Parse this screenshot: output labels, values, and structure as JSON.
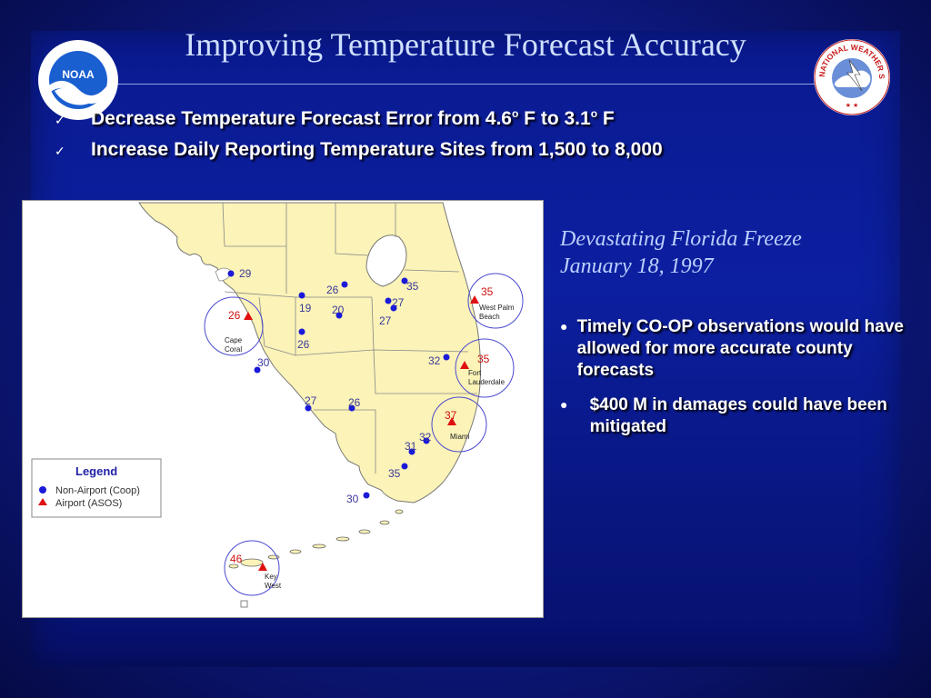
{
  "slide": {
    "title": "Improving Temperature Forecast Accuracy"
  },
  "top_bullets": [
    {
      "icon": "checkmark-icon",
      "text_a": "Decrease Temperature Forecast Error from 4.6",
      "sup_a": "o",
      "text_b": " F to 3.1",
      "sup_b": "o",
      "text_c": " F"
    },
    {
      "icon": "checkmark-icon",
      "text": "Increase Daily Reporting Temperature Sites from 1,500 to 8,000"
    }
  ],
  "side": {
    "title_line1": "Devastating Florida Freeze",
    "title_line2": "January 18, 1997",
    "bullets": [
      "Timely CO-OP observations would have allowed for more accurate county forecasts",
      "$400 M in damages could have been mitigated"
    ]
  },
  "logos": {
    "noaa_text": "NOAA",
    "nws_text": "NATIONAL WEATHER SERVICE"
  },
  "map": {
    "legend": {
      "title": "Legend",
      "coop_label": "Non-Airport (Coop)",
      "asos_label": "Airport (ASOS)"
    },
    "colors": {
      "land": "#fbf3b7",
      "water": "#ffffff",
      "coop": "#1a1ad8",
      "asos": "#e01010",
      "label": "#3a3a9a",
      "asos_label": "#d01010"
    },
    "coop_sites": [
      {
        "temp": "29"
      },
      {
        "temp": "26"
      },
      {
        "temp": "35"
      },
      {
        "temp": "19"
      },
      {
        "temp": "20"
      },
      {
        "temp": "27"
      },
      {
        "temp": "27"
      },
      {
        "temp": "26"
      },
      {
        "temp": "30"
      },
      {
        "temp": "32"
      },
      {
        "temp": "27"
      },
      {
        "temp": "26"
      },
      {
        "temp": "31"
      },
      {
        "temp": "32"
      },
      {
        "temp": "35"
      },
      {
        "temp": "30"
      }
    ],
    "asos_sites": [
      {
        "temp": "26",
        "city": "Cape Coral"
      },
      {
        "temp": "35",
        "city": "West Palm Beach"
      },
      {
        "temp": "35",
        "city": "Fort Lauderdale"
      },
      {
        "temp": "37",
        "city": "Miami"
      },
      {
        "temp": "46",
        "city": "Key West"
      }
    ]
  }
}
